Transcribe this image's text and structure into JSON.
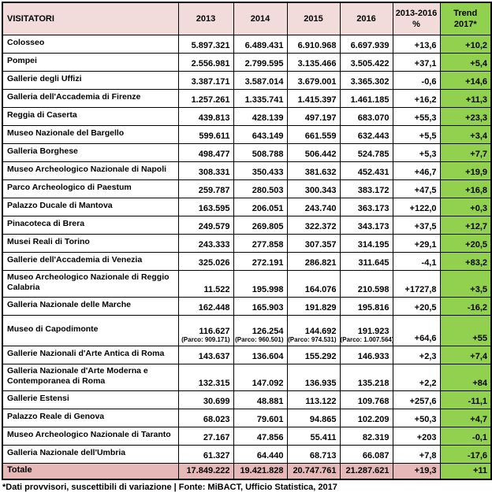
{
  "chart_data": {
    "type": "table",
    "header": {
      "first": "VISITATORI",
      "years": [
        "2013",
        "2014",
        "2015",
        "2016"
      ],
      "pct_lines": [
        "2013-2016",
        "%"
      ],
      "trend_lines": [
        "Trend",
        "2017*"
      ]
    },
    "rows": [
      {
        "name": "Colosseo",
        "values": [
          "5.897.321",
          "6.489.431",
          "6.910.968",
          "6.697.939"
        ],
        "pct": "+13,6",
        "trend": "+10,2"
      },
      {
        "name": "Pompei",
        "values": [
          "2.556.981",
          "2.799.595",
          "3.135.466",
          "3.505.422"
        ],
        "pct": "+37,1",
        "trend": "+5,4"
      },
      {
        "name": "Gallerie degli Uffizi",
        "values": [
          "3.387.171",
          "3.587.014",
          "3.679.001",
          "3.365.302"
        ],
        "pct": "-0,6",
        "trend": "+14,6"
      },
      {
        "name": "Galleria dell'Accademia di Firenze",
        "values": [
          "1.257.261",
          "1.335.741",
          "1.415.397",
          "1.461.185"
        ],
        "pct": "+16,2",
        "trend": "+11,3"
      },
      {
        "name": "Reggia di Caserta",
        "values": [
          "439.813",
          "428.139",
          "497.197",
          "683.070"
        ],
        "pct": "+55,3",
        "trend": "+23,3"
      },
      {
        "name": "Museo Nazionale del Bargello",
        "values": [
          "599.611",
          "643.149",
          "661.559",
          "632.443"
        ],
        "pct": "+5,5",
        "trend": "+3,4"
      },
      {
        "name": "Galleria Borghese",
        "values": [
          "498.477",
          "508.788",
          "506.442",
          "524.785"
        ],
        "pct": "+5,3",
        "trend": "+7,7"
      },
      {
        "name": "Museo Archeologico Nazionale di Napoli",
        "values": [
          "308.331",
          "350.433",
          "381.632",
          "452.431"
        ],
        "pct": "+46,7",
        "trend": "+19,9"
      },
      {
        "name": "Parco Archeologico di Paestum",
        "values": [
          "259.787",
          "280.503",
          "300.343",
          "383.172"
        ],
        "pct": "+47,5",
        "trend": "+16,8"
      },
      {
        "name": "Palazzo Ducale di Mantova",
        "values": [
          "163.595",
          "206.051",
          "243.740",
          "363.173"
        ],
        "pct": "+122,0",
        "trend": "+0,3"
      },
      {
        "name": "Pinacoteca di Brera",
        "values": [
          "249.579",
          "269.805",
          "322.372",
          "343.173"
        ],
        "pct": "+37,5",
        "trend": "+12,7"
      },
      {
        "name": "Musei Reali di Torino",
        "values": [
          "243.333",
          "277.858",
          "307.357",
          "314.195"
        ],
        "pct": "+29,1",
        "trend": "+20,5"
      },
      {
        "name": "Gallerie dell'Accademia di Venezia",
        "values": [
          "325.026",
          "272.191",
          "286.821",
          "311.645"
        ],
        "pct": "-4,1",
        "trend": "+83,2"
      },
      {
        "name": "Museo Archeologico Nazionale di Reggio Calabria",
        "values": [
          "11.522",
          "195.998",
          "164.076",
          "210.598"
        ],
        "pct": "+1727,8",
        "trend": "+3,5"
      },
      {
        "name": "Galleria Nazionale delle Marche",
        "values": [
          "162.448",
          "165.903",
          "191.829",
          "195.816"
        ],
        "pct": "+20,5",
        "trend": "-16,2"
      },
      {
        "name": "Museo di Capodimonte",
        "values": [
          "116.627",
          "126.254",
          "144.692",
          "191.923"
        ],
        "sub": [
          "(Parco: 909.171)",
          "(Parco: 960.501)",
          "(Parco: 974.531)",
          "(Parco: 1.007.564)"
        ],
        "pct": "+64,6",
        "trend": "+55"
      },
      {
        "name": "Gallerie Nazionali d'Arte Antica di Roma",
        "values": [
          "143.637",
          "136.604",
          "155.292",
          "146.933"
        ],
        "pct": "+2,3",
        "trend": "+7,4"
      },
      {
        "name": "Galleria Nazionale d'Arte Moderna e Contemporanea di Roma",
        "values": [
          "132.315",
          "147.092",
          "136.935",
          "135.218"
        ],
        "pct": "+2,2",
        "trend": "+84"
      },
      {
        "name": "Gallerie Estensi",
        "values": [
          "30.699",
          "48.881",
          "113.122",
          "109.768"
        ],
        "pct": "+257,6",
        "trend": "-11,1"
      },
      {
        "name": "Palazzo Reale di Genova",
        "values": [
          "68.023",
          "79.601",
          "94.865",
          "102.209"
        ],
        "pct": "+50,3",
        "trend": "+4,7"
      },
      {
        "name": "Museo Archeologico Nazionale di Taranto",
        "values": [
          "27.167",
          "47.856",
          "55.411",
          "82.319"
        ],
        "pct": "+203",
        "trend": "-0,1"
      },
      {
        "name": "Galleria Nazionale dell'Umbria",
        "values": [
          "61.327",
          "64.440",
          "68.713",
          "66.087"
        ],
        "pct": "+7,8",
        "trend": "-17,6"
      }
    ],
    "total": {
      "name": "Totale",
      "values": [
        "17.849.222",
        "19.421.828",
        "20.747.761",
        "21.287.621"
      ],
      "pct": "+19,3",
      "trend": "+11"
    },
    "footnote": "*Dati provvisori, suscettibili di variazione | Fonte: MiBACT, Ufficio Statistica, 2017",
    "colors": {
      "header_bg": "#F2DCDB",
      "total_row_bg": "#E6B9B8",
      "trend_col_bg": "#92D050",
      "border": "#000000",
      "text": "#000000"
    }
  }
}
